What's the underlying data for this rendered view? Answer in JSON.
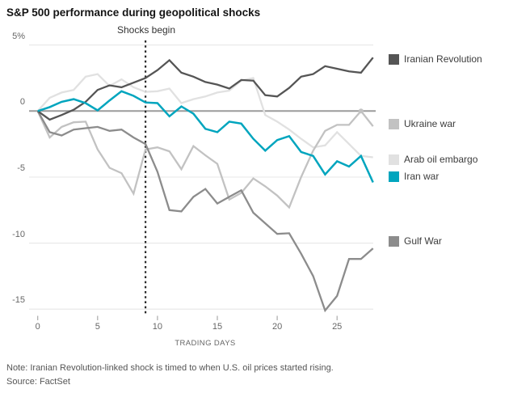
{
  "title": "S&P 500 performance during geopolitical shocks",
  "annotation": "Shocks begin",
  "note": "Note: Iranian Revolution-linked shock is timed to when U.S. oil prices started rising.",
  "source": "Source: FactSet",
  "chart_data": {
    "type": "line",
    "title": "S&P 500 performance during geopolitical shocks",
    "xlabel": "TRADING DAYS",
    "ylabel": "%",
    "x_ticks": [
      0,
      5,
      10,
      15,
      20,
      25
    ],
    "y_ticks": [
      {
        "value": 5,
        "label": "5%"
      },
      {
        "value": 0,
        "label": "0"
      },
      {
        "value": -5,
        "label": "-5"
      },
      {
        "value": -10,
        "label": "-10"
      },
      {
        "value": -15,
        "label": "-15"
      }
    ],
    "xlim": [
      0,
      28.5
    ],
    "ylim": [
      -15.5,
      5
    ],
    "grid": "horizontal",
    "legend_position": "right",
    "shock_day": 9,
    "x": [
      0,
      1,
      2,
      3,
      4,
      5,
      6,
      7,
      8,
      9,
      10,
      11,
      12,
      13,
      14,
      15,
      16,
      17,
      18,
      19,
      20,
      21,
      22,
      23,
      24,
      25,
      26,
      27,
      28
    ],
    "series": [
      {
        "name": "Iranian Revolution",
        "color": "#555555",
        "values": [
          0,
          -0.65,
          -0.3,
          0.1,
          0.7,
          1.6,
          1.95,
          1.8,
          2.15,
          2.5,
          3.1,
          3.85,
          2.9,
          2.6,
          2.2,
          2.0,
          1.7,
          2.35,
          2.3,
          1.2,
          1.1,
          1.75,
          2.6,
          2.8,
          3.4,
          3.2,
          3.0,
          2.9,
          4.05
        ]
      },
      {
        "name": "Ukraine war",
        "color": "#c2c2c2",
        "values": [
          0,
          -2.0,
          -1.2,
          -0.85,
          -0.8,
          -2.9,
          -4.3,
          -4.7,
          -6.25,
          -2.9,
          -2.75,
          -3.05,
          -4.4,
          -2.65,
          -3.35,
          -4.0,
          -6.7,
          -6.2,
          -5.1,
          -5.7,
          -6.4,
          -7.3,
          -5.0,
          -3.0,
          -1.5,
          -1.05,
          -1.05,
          0.0,
          -1.15
        ],
        "end_marker": {
          "x": 27,
          "y": 0.0
        }
      },
      {
        "name": "Arab oil embargo",
        "color": "#e1e1e1",
        "values": [
          0,
          1.0,
          1.4,
          1.6,
          2.6,
          2.8,
          1.9,
          2.4,
          1.8,
          1.45,
          1.5,
          1.7,
          0.6,
          0.9,
          1.1,
          1.4,
          1.55,
          2.3,
          2.5,
          -0.3,
          -0.8,
          -1.4,
          -2.1,
          -2.75,
          -2.6,
          -1.6,
          -2.5,
          -3.4,
          -3.5
        ]
      },
      {
        "name": "Iran war",
        "color": "#00a5be",
        "values": [
          0,
          0.3,
          0.7,
          0.9,
          0.6,
          0.05,
          0.8,
          1.5,
          1.15,
          0.65,
          0.6,
          -0.4,
          0.35,
          -0.2,
          -1.35,
          -1.6,
          -0.8,
          -0.95,
          -2.1,
          -3.0,
          -2.2,
          -1.9,
          -3.1,
          -3.4,
          -4.8,
          -3.8,
          -4.2,
          -3.4,
          -5.4
        ]
      },
      {
        "name": "Gulf War",
        "color": "#8c8c8c",
        "values": [
          0,
          -1.6,
          -1.85,
          -1.4,
          -1.3,
          -1.2,
          -1.5,
          -1.4,
          -2.0,
          -2.5,
          -4.6,
          -7.5,
          -7.6,
          -6.5,
          -5.9,
          -7.0,
          -6.5,
          -6.0,
          -7.7,
          -8.5,
          -9.3,
          -9.25,
          -10.8,
          -12.5,
          -15.1,
          -14.0,
          -11.2,
          -11.2,
          -10.4
        ]
      }
    ],
    "colors": {
      "grid": "#e9e9e9",
      "zero_line": "#9b9b9b",
      "shock_line": "#2b2b2b",
      "tick_mark": "#aaaaaa",
      "accent_teal": "#00a5be"
    }
  }
}
